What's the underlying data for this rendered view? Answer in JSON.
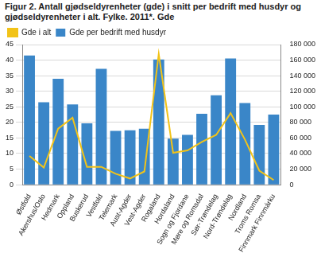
{
  "chart_data": {
    "type": "bar",
    "title": "Figur 2. Antall gjødseldyrenheter (gde) i snitt per bedrift med husdyr og gjødseldyrenheter i alt. Fylke. 2011*. Gde",
    "categories": [
      "Østfold",
      "Akershus/Oslo",
      "Hedmark",
      "Oppland",
      "Buskerud",
      "Vestfold",
      "Telemark",
      "Aust-Agder",
      "Vest-Agder",
      "Rogaland",
      "Hordaland",
      "Sogn og Fjordane",
      "Møre og Romsdal",
      "Sør-Trøndelag",
      "Nord-Trøndelag",
      "Nordland",
      "Troms Romsa",
      "Finnmark Finnmárku"
    ],
    "series": [
      {
        "name": "Gde per bedrift med husdyr",
        "color": "#3a86c8",
        "values": [
          41.5,
          26.5,
          34,
          25.8,
          19.7,
          37.2,
          17.3,
          17.5,
          18,
          40.2,
          14.8,
          16,
          22.8,
          28.7,
          40.5,
          26.2,
          19.2,
          22.5
        ]
      },
      {
        "name": "Gde i alt",
        "type": "line",
        "color": "#f2c318",
        "axis": "y2",
        "marker": "none",
        "values": [
          37000,
          22000,
          72000,
          86000,
          23000,
          23000,
          14000,
          8000,
          17000,
          168000,
          41000,
          44000,
          55000,
          64000,
          92000,
          58000,
          18000,
          6000
        ]
      }
    ],
    "ylim": [
      0,
      45
    ],
    "yticks": [
      0,
      5,
      10,
      15,
      20,
      25,
      30,
      35,
      40,
      45
    ],
    "y2lim": [
      0,
      180000
    ],
    "y2ticks": [
      0,
      {
        "value": 20000,
        "label": "20 000"
      },
      {
        "value": 40000,
        "label": "40 000"
      },
      {
        "value": 60000,
        "label": "60 000"
      },
      {
        "value": 80000,
        "label": "80 000"
      },
      {
        "value": 100000,
        "label": "100 000"
      },
      {
        "value": 120000,
        "label": "120 000"
      },
      {
        "value": 140000,
        "label": "140 000"
      },
      {
        "value": 160000,
        "label": "160 000"
      },
      {
        "value": 180000,
        "label": "180 000"
      }
    ],
    "grid": true,
    "legend": "top-left"
  }
}
